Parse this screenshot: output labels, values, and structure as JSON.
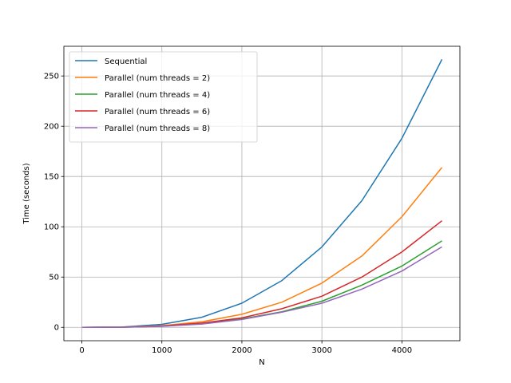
{
  "chart_data": {
    "type": "line",
    "title": "",
    "xlabel": "N",
    "ylabel": "Time (seconds)",
    "xlim": [
      -225,
      4725
    ],
    "ylim": [
      -13.3,
      279.5
    ],
    "xticks": [
      "0",
      "1000",
      "2000",
      "3000",
      "4000"
    ],
    "xtick_values": [
      0,
      1000,
      2000,
      3000,
      4000
    ],
    "yticks": [
      "0",
      "50",
      "100",
      "150",
      "200",
      "250"
    ],
    "ytick_values": [
      0,
      50,
      100,
      150,
      200,
      250
    ],
    "grid": true,
    "legend_position": "upper-left",
    "x": [
      0,
      500,
      1000,
      1500,
      2000,
      2500,
      3000,
      3500,
      4000,
      4500
    ],
    "series": [
      {
        "name": "Sequential",
        "color": "#1f77b4",
        "values": [
          0,
          0.3,
          3,
          10,
          24,
          46.5,
          80,
          126,
          188,
          266.5
        ]
      },
      {
        "name": "Parallel (num threads = 2)",
        "color": "#ff7f0e",
        "values": [
          0,
          0.2,
          1.7,
          5.5,
          13,
          25,
          44,
          71,
          110,
          159
        ]
      },
      {
        "name": "Parallel (num threads = 4)",
        "color": "#2ca02c",
        "values": [
          0,
          0.1,
          1.1,
          3.6,
          8.3,
          15.5,
          26,
          42,
          61,
          86
        ]
      },
      {
        "name": "Parallel (num threads = 6)",
        "color": "#d62728",
        "values": [
          0,
          0.1,
          1.3,
          4.2,
          9.4,
          18.5,
          31,
          50,
          75,
          106
        ]
      },
      {
        "name": "Parallel (num threads = 8)",
        "color": "#9467bd",
        "values": [
          0,
          0.1,
          1,
          3.3,
          7.8,
          15,
          24,
          38,
          56,
          80
        ]
      }
    ]
  }
}
